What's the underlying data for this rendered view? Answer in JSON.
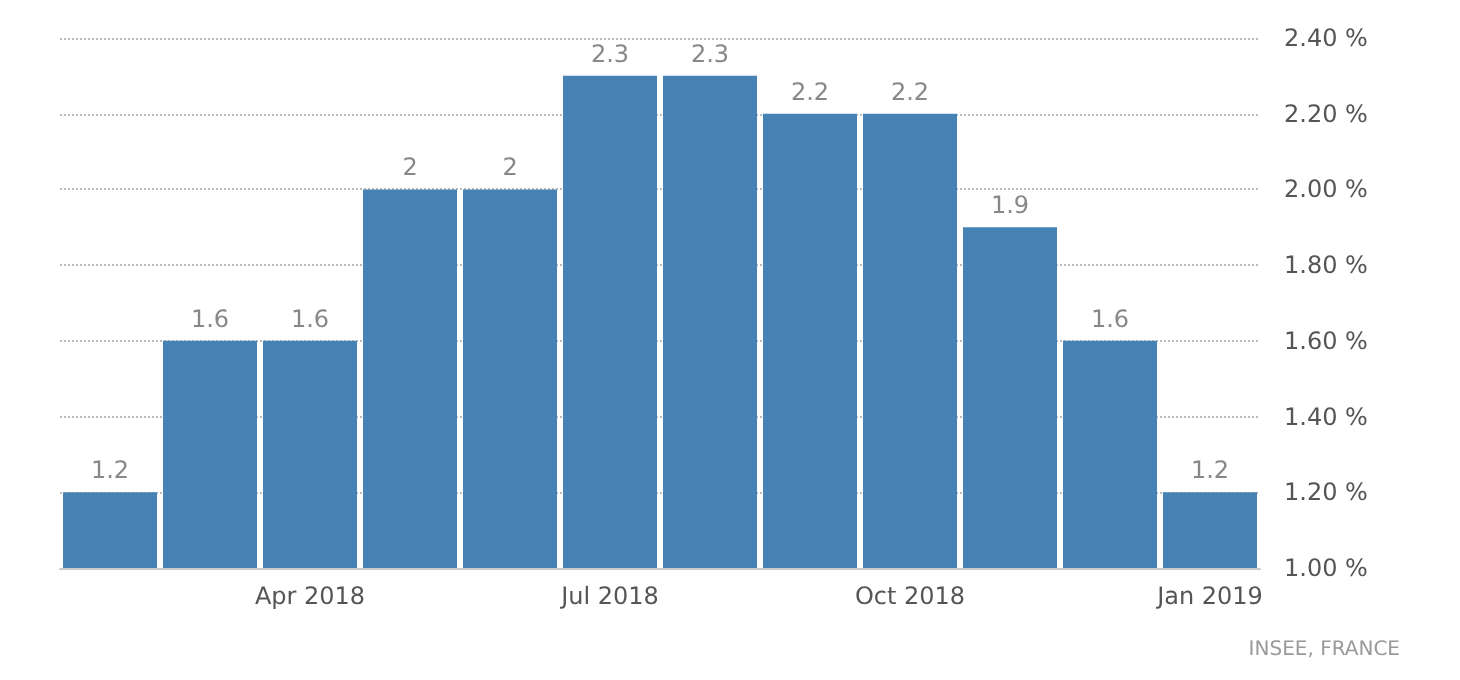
{
  "chart_data": {
    "type": "bar",
    "categories": [
      null,
      null,
      "Apr 2018",
      null,
      null,
      "Jul 2018",
      null,
      null,
      "Oct 2018",
      null,
      null,
      "Jan 2019"
    ],
    "values": [
      1.2,
      1.6,
      1.6,
      2,
      2,
      2.3,
      2.3,
      2.2,
      2.2,
      1.9,
      1.6,
      1.2
    ],
    "color": "#4682b4",
    "ylim": [
      1,
      2.4
    ],
    "yticks": [
      {
        "value": 1,
        "label": "1.00 %"
      },
      {
        "value": 1.2,
        "label": "1.20 %"
      },
      {
        "value": 1.4,
        "label": "1.40 %"
      },
      {
        "value": 1.6,
        "label": "1.60 %"
      },
      {
        "value": 1.8,
        "label": "1.80 %"
      },
      {
        "value": 2,
        "label": "2.00 %"
      },
      {
        "value": 2.2,
        "label": "2.20 %"
      },
      {
        "value": 2.4,
        "label": "2.40 %"
      }
    ],
    "grid": "y",
    "data_labels": true,
    "annotations": [
      "INSEE, FRANCE"
    ]
  }
}
